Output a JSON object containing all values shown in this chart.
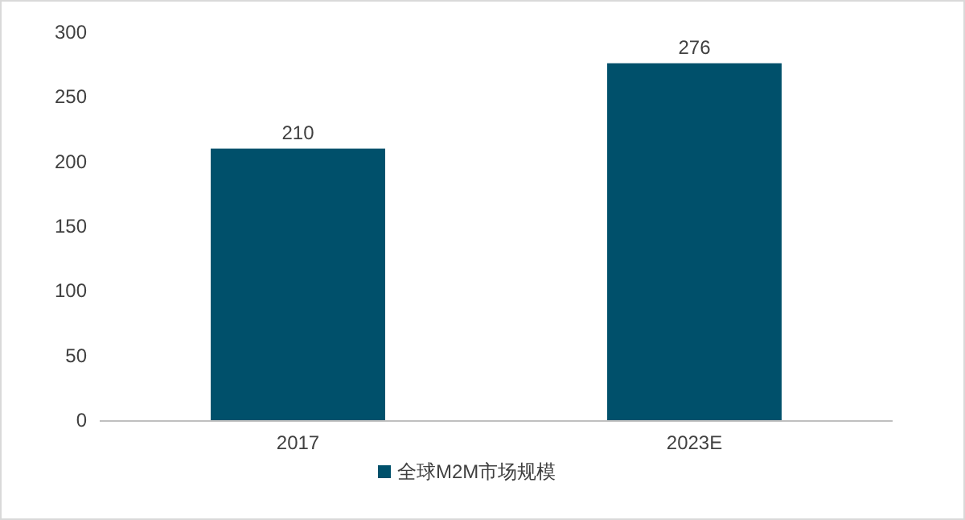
{
  "chart_data": {
    "type": "bar",
    "categories": [
      "2017",
      "2023E"
    ],
    "series": [
      {
        "name": "全球M2M市场规模",
        "color": "#00506b",
        "values": [
          210,
          276
        ]
      }
    ],
    "ylim": [
      0,
      300
    ],
    "yticks": [
      0,
      50,
      100,
      150,
      200,
      250,
      300
    ],
    "data_labels": true,
    "legend": "bottom",
    "grid": false
  }
}
